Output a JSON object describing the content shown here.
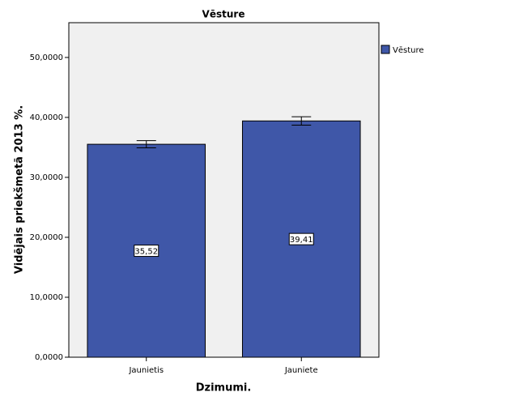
{
  "chart_data": {
    "type": "bar",
    "title": "Vēsture",
    "xlabel": "Dzimumi.",
    "ylabel": "Vidējais priekšmetā 2013 %.",
    "categories": [
      "Jaunietis",
      "Jauniete"
    ],
    "series": [
      {
        "name": "Vēsture",
        "color": "#3f57a8",
        "values": [
          35.52,
          39.41
        ],
        "value_labels": [
          "35,52",
          "39,41"
        ],
        "errors": [
          0.6,
          0.7
        ]
      }
    ],
    "ylim": [
      0,
      55.8
    ],
    "yticks": [
      {
        "value": 0,
        "label": "0,0000"
      },
      {
        "value": 10,
        "label": "10,0000"
      },
      {
        "value": 20,
        "label": "20,0000"
      },
      {
        "value": 30,
        "label": "30,0000"
      },
      {
        "value": 40,
        "label": "40,0000"
      },
      {
        "value": 50,
        "label": "50,0000"
      }
    ],
    "legend": "right"
  }
}
